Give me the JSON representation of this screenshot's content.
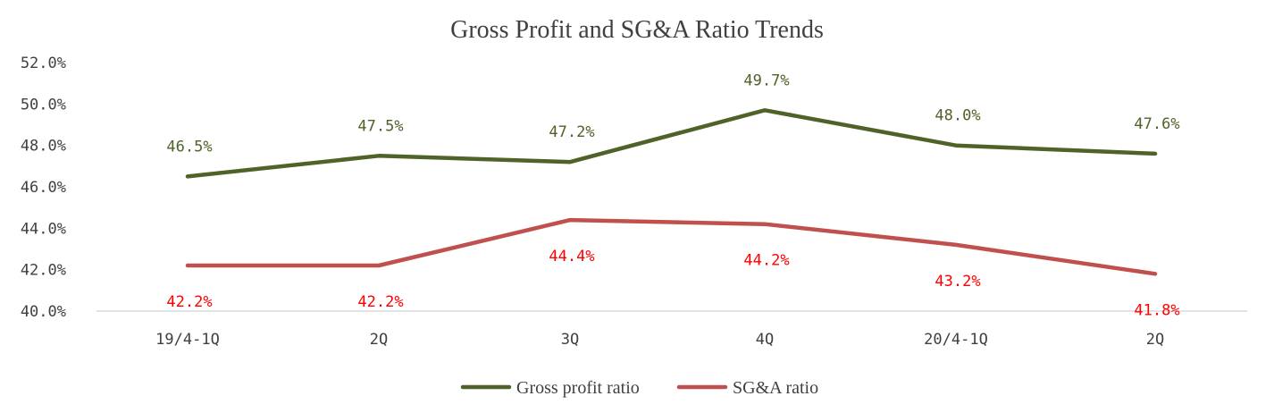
{
  "chart_data": {
    "type": "line",
    "title": "Gross Profit and SG&A Ratio Trends",
    "categories": [
      "19/4-1Q",
      "2Q",
      "3Q",
      "4Q",
      "20/4-1Q",
      "2Q"
    ],
    "ylim": [
      40.0,
      52.0
    ],
    "yticks": [
      40.0,
      42.0,
      44.0,
      46.0,
      48.0,
      50.0,
      52.0
    ],
    "ytick_labels": [
      "40.0%",
      "42.0%",
      "44.0%",
      "46.0%",
      "48.0%",
      "50.0%",
      "52.0%"
    ],
    "grid": false,
    "legend_position": "bottom",
    "series": [
      {
        "name": "Gross profit ratio",
        "values": [
          46.5,
          47.5,
          47.2,
          49.7,
          48.0,
          47.6
        ],
        "labels": [
          "46.5%",
          "47.5%",
          "47.2%",
          "49.7%",
          "48.0%",
          "47.6%"
        ],
        "label_position": "above",
        "color": "#4f6228",
        "label_color": "#4f6228"
      },
      {
        "name": "SG&A ratio",
        "values": [
          42.2,
          42.2,
          44.4,
          44.2,
          43.2,
          41.8
        ],
        "labels": [
          "42.2%",
          "42.2%",
          "44.4%",
          "44.2%",
          "43.2%",
          "41.8%"
        ],
        "label_position": "below",
        "color": "#c0504d",
        "label_color": "#ff0000"
      }
    ]
  }
}
